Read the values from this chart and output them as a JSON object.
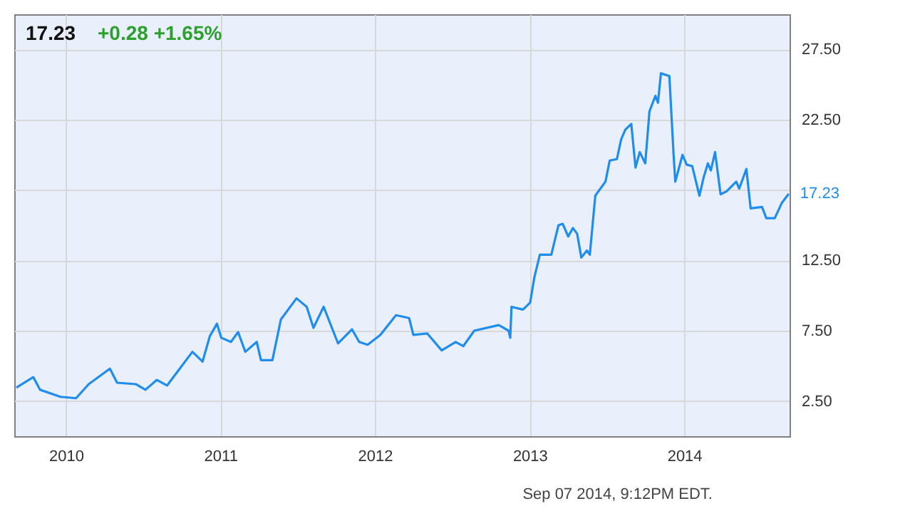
{
  "chart_data": {
    "type": "line",
    "title": "17.23",
    "subtitle": "+0.28  +1.65%",
    "annotations": [
      {
        "text": "17.23",
        "x": "2014-09-05",
        "y": 17.23
      },
      "Sep 07 2014, 9:12PM EDT."
    ],
    "x": [
      "2009-09-06",
      "2009-10-16",
      "2009-11-01",
      "2009-12-19",
      "2010-01-25",
      "2010-02-24",
      "2010-04-15",
      "2010-05-02",
      "2010-06-15",
      "2010-07-08",
      "2010-08-04",
      "2010-08-28",
      "2010-10-27",
      "2010-11-20",
      "2010-12-07",
      "2010-12-24",
      "2011-01-03",
      "2011-01-26",
      "2011-02-12",
      "2011-03-01",
      "2011-03-28",
      "2011-04-07",
      "2011-05-04",
      "2011-05-24",
      "2011-06-30",
      "2011-07-24",
      "2011-08-09",
      "2011-09-02",
      "2011-10-06",
      "2011-11-08",
      "2011-11-25",
      "2011-12-15",
      "2012-01-14",
      "2012-02-20",
      "2012-03-22",
      "2012-04-01",
      "2012-05-04",
      "2012-06-07",
      "2012-07-10",
      "2012-07-28",
      "2012-08-23",
      "2012-10-20",
      "2012-11-12",
      "2012-11-16",
      "2012-11-19",
      "2012-12-16",
      "2013-01-02",
      "2013-01-12",
      "2013-01-25",
      "2013-02-21",
      "2013-03-10",
      "2013-03-20",
      "2013-04-02",
      "2013-04-13",
      "2013-04-23",
      "2013-05-03",
      "2013-05-16",
      "2013-05-23",
      "2013-06-05",
      "2013-06-29",
      "2013-07-09",
      "2013-07-26",
      "2013-08-05",
      "2013-08-15",
      "2013-08-29",
      "2013-09-08",
      "2013-09-18",
      "2013-10-01",
      "2013-10-11",
      "2013-10-25",
      "2013-10-31",
      "2013-11-07",
      "2013-11-27",
      "2013-12-07",
      "2013-12-11",
      "2013-12-28",
      "2014-01-07",
      "2014-01-20",
      "2014-02-06",
      "2014-02-16",
      "2014-02-26",
      "2014-03-05",
      "2014-03-15",
      "2014-03-28",
      "2014-04-11",
      "2014-05-04",
      "2014-05-11",
      "2014-05-28",
      "2014-06-07",
      "2014-07-04",
      "2014-07-14",
      "2014-08-03",
      "2014-08-20",
      "2014-09-05"
    ],
    "series": [
      {
        "color": "#1f8ded",
        "values": [
          3.45,
          4.2,
          3.3,
          2.8,
          2.7,
          3.7,
          4.8,
          3.8,
          3.7,
          3.3,
          4.0,
          3.6,
          6.0,
          5.3,
          7.1,
          8.0,
          7.0,
          6.7,
          7.4,
          6.0,
          6.7,
          5.4,
          5.4,
          8.3,
          9.8,
          9.2,
          7.7,
          9.2,
          6.6,
          7.6,
          6.7,
          6.5,
          7.2,
          8.6,
          8.4,
          7.2,
          7.3,
          6.1,
          6.7,
          6.4,
          7.5,
          7.9,
          7.5,
          7.0,
          9.2,
          9.0,
          9.5,
          11.3,
          12.9,
          12.9,
          15.0,
          15.1,
          14.2,
          14.8,
          14.4,
          12.7,
          13.2,
          12.9,
          17.1,
          18.1,
          19.6,
          19.7,
          21.1,
          21.8,
          22.2,
          19.1,
          20.2,
          19.4,
          23.1,
          24.2,
          23.7,
          25.8,
          25.6,
          20.0,
          18.1,
          20.0,
          19.3,
          19.2,
          17.1,
          18.4,
          19.4,
          18.9,
          20.2,
          17.2,
          17.4,
          18.1,
          17.6,
          19.0,
          16.2,
          16.3,
          15.5,
          15.5,
          16.6,
          17.23
        ]
      }
    ],
    "xlim": [
      "2009-09-01",
      "2014-09-07"
    ],
    "xticks": [
      "2010",
      "2011",
      "2012",
      "2013",
      "2014"
    ],
    "ylim": [
      0,
      30
    ],
    "yticks": [
      {
        "value": 2.5,
        "label": "2.50"
      },
      {
        "value": 7.5,
        "label": "7.50"
      },
      {
        "value": 12.5,
        "label": "12.50"
      },
      {
        "value": 17.5,
        "label": null
      },
      {
        "value": 22.5,
        "label": "22.50"
      },
      {
        "value": 27.5,
        "label": "27.50"
      }
    ],
    "grid": true,
    "marker": "none",
    "line_style": "solid"
  }
}
